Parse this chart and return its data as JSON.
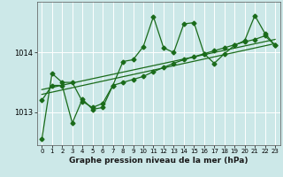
{
  "title": "Graphe pression niveau de la mer (hPa)",
  "background_color": "#cce8e8",
  "plot_bg_color": "#cce8e8",
  "grid_color": "#ffffff",
  "line_color": "#1a6b1a",
  "marker_color": "#1a6b1a",
  "xlim": [
    -0.5,
    23.5
  ],
  "ylim": [
    1012.45,
    1014.85
  ],
  "yticks": [
    1013,
    1014
  ],
  "xticks": [
    0,
    1,
    2,
    3,
    4,
    5,
    6,
    7,
    8,
    9,
    10,
    11,
    12,
    13,
    14,
    15,
    16,
    17,
    18,
    19,
    20,
    21,
    22,
    23
  ],
  "series1_x": [
    0,
    1,
    2,
    3,
    4,
    5,
    6,
    7,
    8,
    9,
    10,
    11,
    12,
    13,
    14,
    15,
    16,
    17,
    18,
    19,
    20,
    21,
    22,
    23
  ],
  "series1_y": [
    1012.55,
    1013.65,
    1013.5,
    1013.5,
    1013.18,
    1013.08,
    1013.15,
    1013.45,
    1013.85,
    1013.88,
    1014.1,
    1014.6,
    1014.08,
    1014.0,
    1014.48,
    1014.5,
    1013.98,
    1013.82,
    1013.98,
    1014.12,
    1014.2,
    1014.62,
    1014.32,
    1014.12
  ],
  "series2_x": [
    0,
    1,
    2,
    3,
    4,
    5,
    6,
    7,
    8,
    9,
    10,
    11,
    12,
    13,
    14,
    15,
    16,
    17,
    18,
    19,
    20,
    21,
    22,
    23
  ],
  "series2_y": [
    1013.2,
    1013.45,
    1013.45,
    1012.82,
    1013.22,
    1013.05,
    1013.08,
    1013.45,
    1013.5,
    1013.55,
    1013.6,
    1013.68,
    1013.75,
    1013.82,
    1013.88,
    1013.93,
    1013.98,
    1014.03,
    1014.08,
    1014.13,
    1014.18,
    1014.22,
    1014.28,
    1014.12
  ],
  "series3_x": [
    0,
    23
  ],
  "series3_y": [
    1013.3,
    1014.15
  ],
  "series4_x": [
    0,
    23
  ],
  "series4_y": [
    1013.38,
    1014.22
  ]
}
